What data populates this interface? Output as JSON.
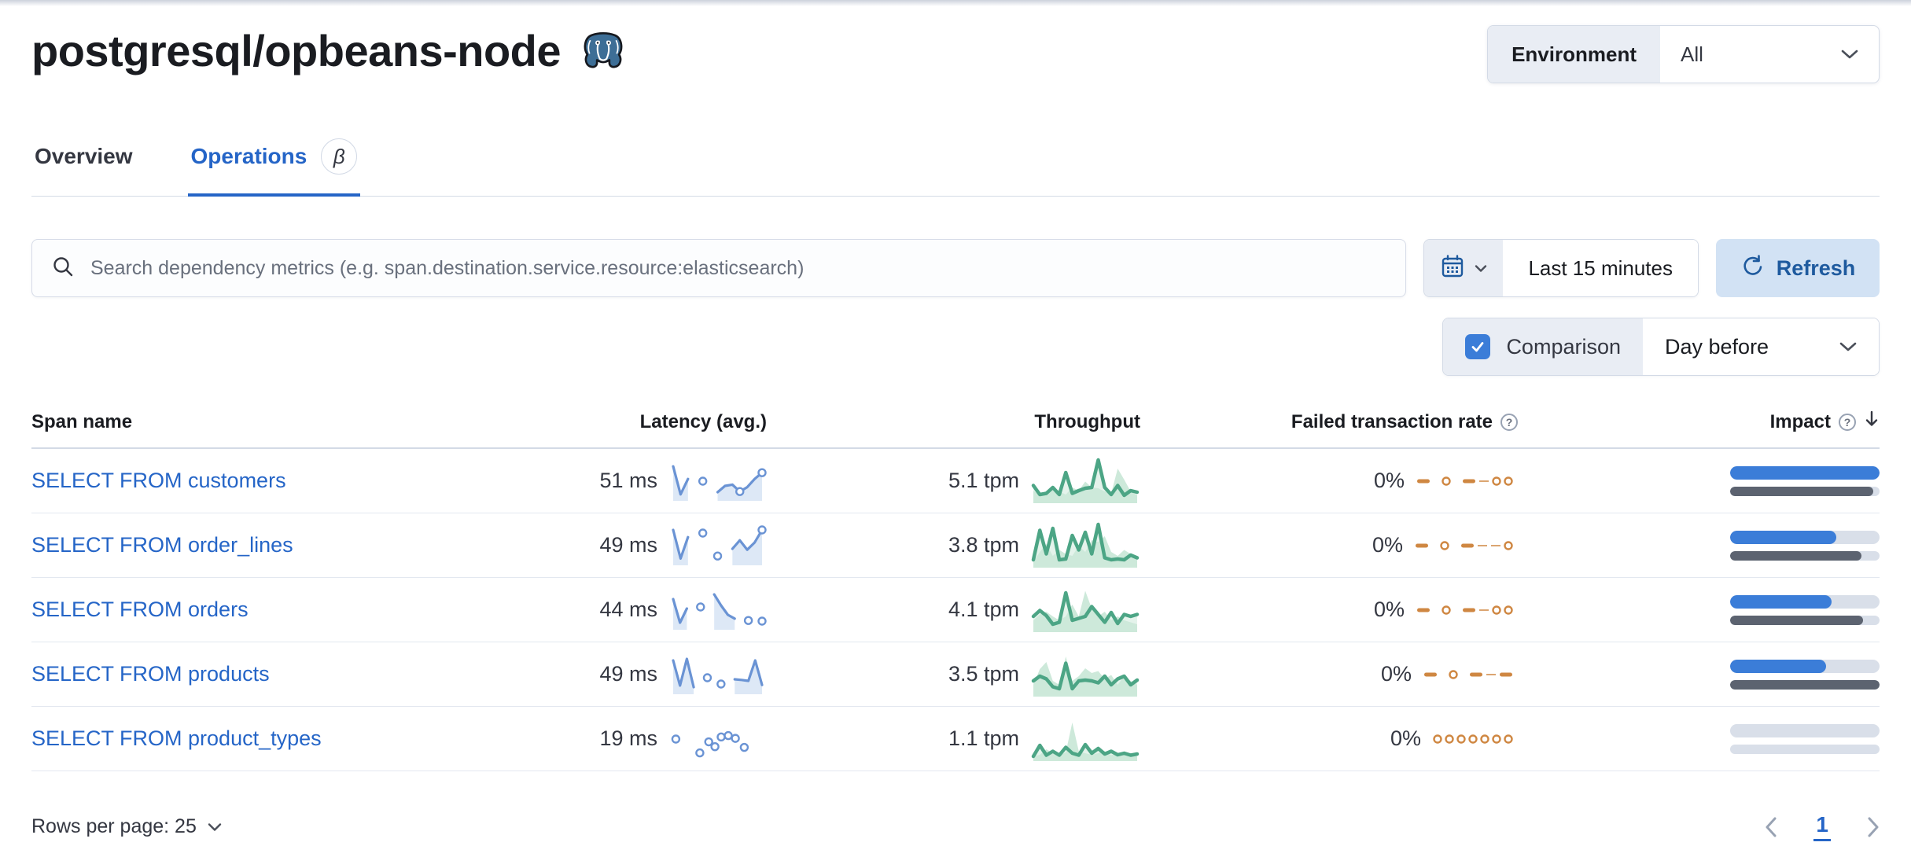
{
  "page": {
    "title": "postgresql/opbeans-node"
  },
  "environment": {
    "label": "Environment",
    "value": "All"
  },
  "tabs": {
    "overview": "Overview",
    "operations": "Operations",
    "beta_badge": "β"
  },
  "search": {
    "placeholder": "Search dependency metrics (e.g. span.destination.service.resource:elasticsearch)"
  },
  "time_picker": {
    "range": "Last 15 minutes",
    "refresh_label": "Refresh"
  },
  "comparison": {
    "label": "Comparison",
    "checked": true,
    "value": "Day before"
  },
  "icons": {
    "help_glyph": "?"
  },
  "table": {
    "columns": {
      "span_name": "Span name",
      "latency": "Latency (avg.)",
      "throughput": "Throughput",
      "failed_rate": "Failed transaction rate",
      "impact": "Impact"
    },
    "sort": {
      "column": "impact",
      "direction": "desc"
    },
    "rows": [
      {
        "span_name": "SELECT FROM customers",
        "latency": "51 ms",
        "throughput": "5.1 tpm",
        "failed_rate": "0%",
        "latency_spark": {
          "points": [
            0.92,
            0.03,
            0.52,
            null,
            0.45,
            null,
            0.1,
            0.3,
            0.34,
            0.12,
            0.26,
            0.52,
            0.72
          ],
          "markers": [
            9,
            12
          ]
        },
        "throughput_spark": {
          "current": [
            0.35,
            0.12,
            0.15,
            0.3,
            0.12,
            0.68,
            0.15,
            0.22,
            0.28,
            0.3,
            1,
            0.3,
            0.12,
            0.35,
            0.1,
            0.22,
            0.18
          ],
          "previous": [
            0.22,
            0.1,
            0.18,
            0.32,
            0.2,
            0.12,
            0.3,
            0.22,
            0.45,
            0.3,
            0.28,
            0.2,
            0.15,
            0.78,
            0.5,
            0.2,
            0.1
          ]
        },
        "failed_spark": {
          "tokens": [
            "d",
            "g",
            "o",
            "g",
            "d",
            "t",
            "o",
            "o"
          ]
        },
        "impact_current": 100,
        "impact_previous": 96
      },
      {
        "span_name": "SELECT FROM order_lines",
        "latency": "49 ms",
        "throughput": "3.8 tpm",
        "failed_rate": "0%",
        "latency_spark": {
          "points": [
            0.95,
            0.04,
            0.72,
            null,
            0.85,
            null,
            0.12,
            null,
            0.35,
            0.62,
            0.32,
            0.55,
            0.95
          ],
          "markers": [
            12
          ]
        },
        "throughput_spark": {
          "current": [
            0.1,
            0.85,
            0.25,
            0.9,
            0.1,
            0.12,
            0.72,
            0.35,
            0.8,
            0.25,
            1,
            0.15,
            0.1,
            0.12,
            0.1,
            0.22,
            0.15
          ],
          "previous": [
            0.05,
            0.3,
            0.5,
            0.2,
            0.35,
            0.25,
            0.2,
            0.45,
            0.3,
            0.6,
            0.55,
            0.7,
            0.3,
            0.2,
            0.35,
            0.25,
            0.1
          ]
        },
        "failed_spark": {
          "tokens": [
            "d",
            "g",
            "o",
            "g",
            "d",
            "t",
            "t",
            "o"
          ]
        },
        "impact_current": 71,
        "impact_previous": 88
      },
      {
        "span_name": "SELECT FROM orders",
        "latency": "44 ms",
        "throughput": "4.1 tpm",
        "failed_rate": "0%",
        "latency_spark": {
          "points": [
            0.8,
            0.05,
            0.5,
            null,
            0.55,
            null,
            0.95,
            0.6,
            0.3,
            0.18,
            null,
            0.12,
            null,
            0.1
          ],
          "markers": []
        },
        "throughput_spark": {
          "current": [
            0.3,
            0.45,
            0.32,
            0.1,
            0.15,
            0.9,
            0.2,
            0.25,
            0.3,
            0.55,
            0.35,
            0.15,
            0.4,
            0.12,
            0.35,
            0.3,
            0.35
          ],
          "previous": [
            0.2,
            0.35,
            0.42,
            0.3,
            0.2,
            0.3,
            0.6,
            0.3,
            0.95,
            0.5,
            0.3,
            0.42,
            0.2,
            0.3,
            0.2,
            0.15,
            0.1
          ]
        },
        "failed_spark": {
          "tokens": [
            "d",
            "g",
            "o",
            "g",
            "d",
            "t",
            "o",
            "o"
          ]
        },
        "impact_current": 68,
        "impact_previous": 89
      },
      {
        "span_name": "SELECT FROM products",
        "latency": "49 ms",
        "throughput": "3.5 tpm",
        "failed_rate": "0%",
        "latency_spark": {
          "points": [
            0.9,
            0.1,
            0.95,
            0.05,
            null,
            0.35,
            null,
            0.15,
            null,
            0.3,
            0.28,
            0.25,
            0.9,
            0.12
          ],
          "markers": []
        },
        "throughput_spark": {
          "current": [
            0.3,
            0.42,
            0.35,
            0.15,
            0.1,
            0.75,
            0.1,
            0.3,
            0.32,
            0.3,
            0.25,
            0.42,
            0.2,
            0.35,
            0.42,
            0.2,
            0.32
          ],
          "previous": [
            0.2,
            0.6,
            0.78,
            0.3,
            0.2,
            0.92,
            0.3,
            0.42,
            0.62,
            0.5,
            0.55,
            0.35,
            0.45,
            0.2,
            0.42,
            0.3,
            0.2
          ]
        },
        "failed_spark": {
          "tokens": [
            "d",
            "g",
            "o",
            "g",
            "d",
            "t",
            "d"
          ]
        },
        "impact_current": 64,
        "impact_previous": 100
      },
      {
        "span_name": "SELECT FROM product_types",
        "latency": "19 ms",
        "throughput": "1.1 tpm",
        "failed_rate": "0%",
        "latency_spark": {
          "dots": [
            [
              0.03,
              0.5
            ],
            [
              0.3,
              0.1
            ],
            [
              0.4,
              0.42
            ],
            [
              0.47,
              0.28
            ],
            [
              0.54,
              0.56
            ],
            [
              0.62,
              0.6
            ],
            [
              0.7,
              0.52
            ],
            [
              0.8,
              0.26
            ]
          ]
        },
        "throughput_spark": {
          "current": [
            0.02,
            0.3,
            0.05,
            0.15,
            0.05,
            0.25,
            0.1,
            0.05,
            0.32,
            0.1,
            0.22,
            0.08,
            0.15,
            0.06,
            0.1,
            0.05,
            0.08
          ],
          "previous": [
            0.02,
            0.06,
            0.2,
            0.1,
            0.05,
            0.12,
            0.88,
            0.15,
            0.1,
            0.06,
            0.1,
            0.15,
            0.05,
            0.1,
            0.06,
            0.05,
            0.02
          ]
        },
        "failed_spark": {
          "tokens": [
            "o",
            "o",
            "o",
            "o",
            "o",
            "o",
            "o"
          ]
        },
        "impact_current": 0,
        "impact_previous": 0
      }
    ]
  },
  "pagination": {
    "rows_per_page_label": "Rows per page: 25",
    "current_page": "1"
  },
  "colors": {
    "link_blue": "#2565c7",
    "active_tab_blue": "#2565c7",
    "impact_bar_blue": "#3b7dd8",
    "impact_bar_previous_gray": "#5c6370",
    "impact_bar_track": "#d9dfe9",
    "latency_spark_blue": "#6a93d4",
    "latency_spark_fill": "#dde8f6",
    "throughput_spark_green": "#4ca585",
    "throughput_spark_fill": "#cde9da",
    "failed_rate_orange": "#cf8742",
    "refresh_button_bg": "#d2e2f4",
    "refresh_button_text": "#1e5a9e",
    "checkbox_blue": "#3b7dd8",
    "form_prepend_bg": "#e9edf4",
    "border_gray": "#d3dae6"
  }
}
